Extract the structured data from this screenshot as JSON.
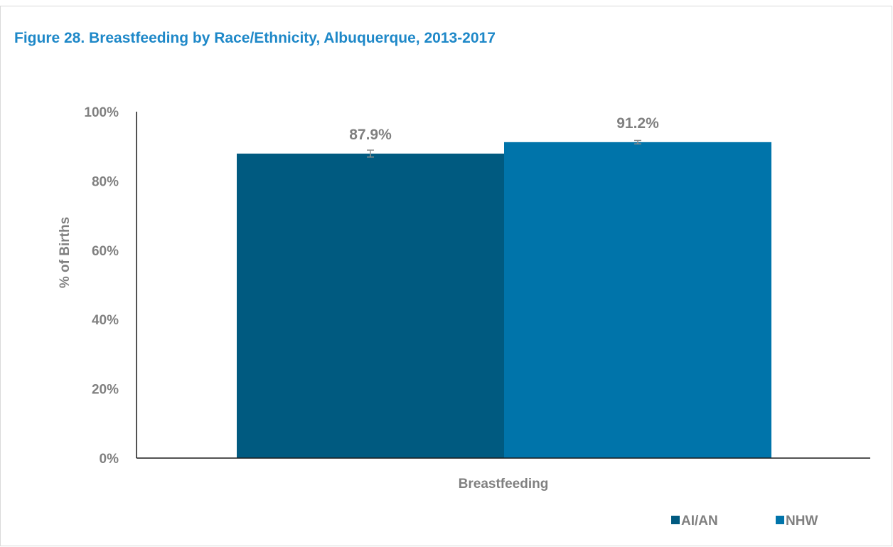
{
  "chart_data": {
    "type": "bar",
    "title": "Figure 28. Breastfeeding by Race/Ethnicity, Albuquerque, 2013-2017",
    "ylabel": "% of Births",
    "ylim": [
      0,
      100
    ],
    "y_ticks": [
      "0%",
      "20%",
      "40%",
      "60%",
      "80%",
      "100%"
    ],
    "categories": [
      "Breastfeeding"
    ],
    "series": [
      {
        "name": "AI/AN",
        "values": [
          87.9
        ],
        "label": "87.9%",
        "error": [
          1.0
        ],
        "color": "#005a80"
      },
      {
        "name": "NHW",
        "values": [
          91.2
        ],
        "label": "91.2%",
        "error": [
          0.5
        ],
        "color": "#0074aa"
      }
    ],
    "legend_position": "bottom-right",
    "grid": false
  }
}
